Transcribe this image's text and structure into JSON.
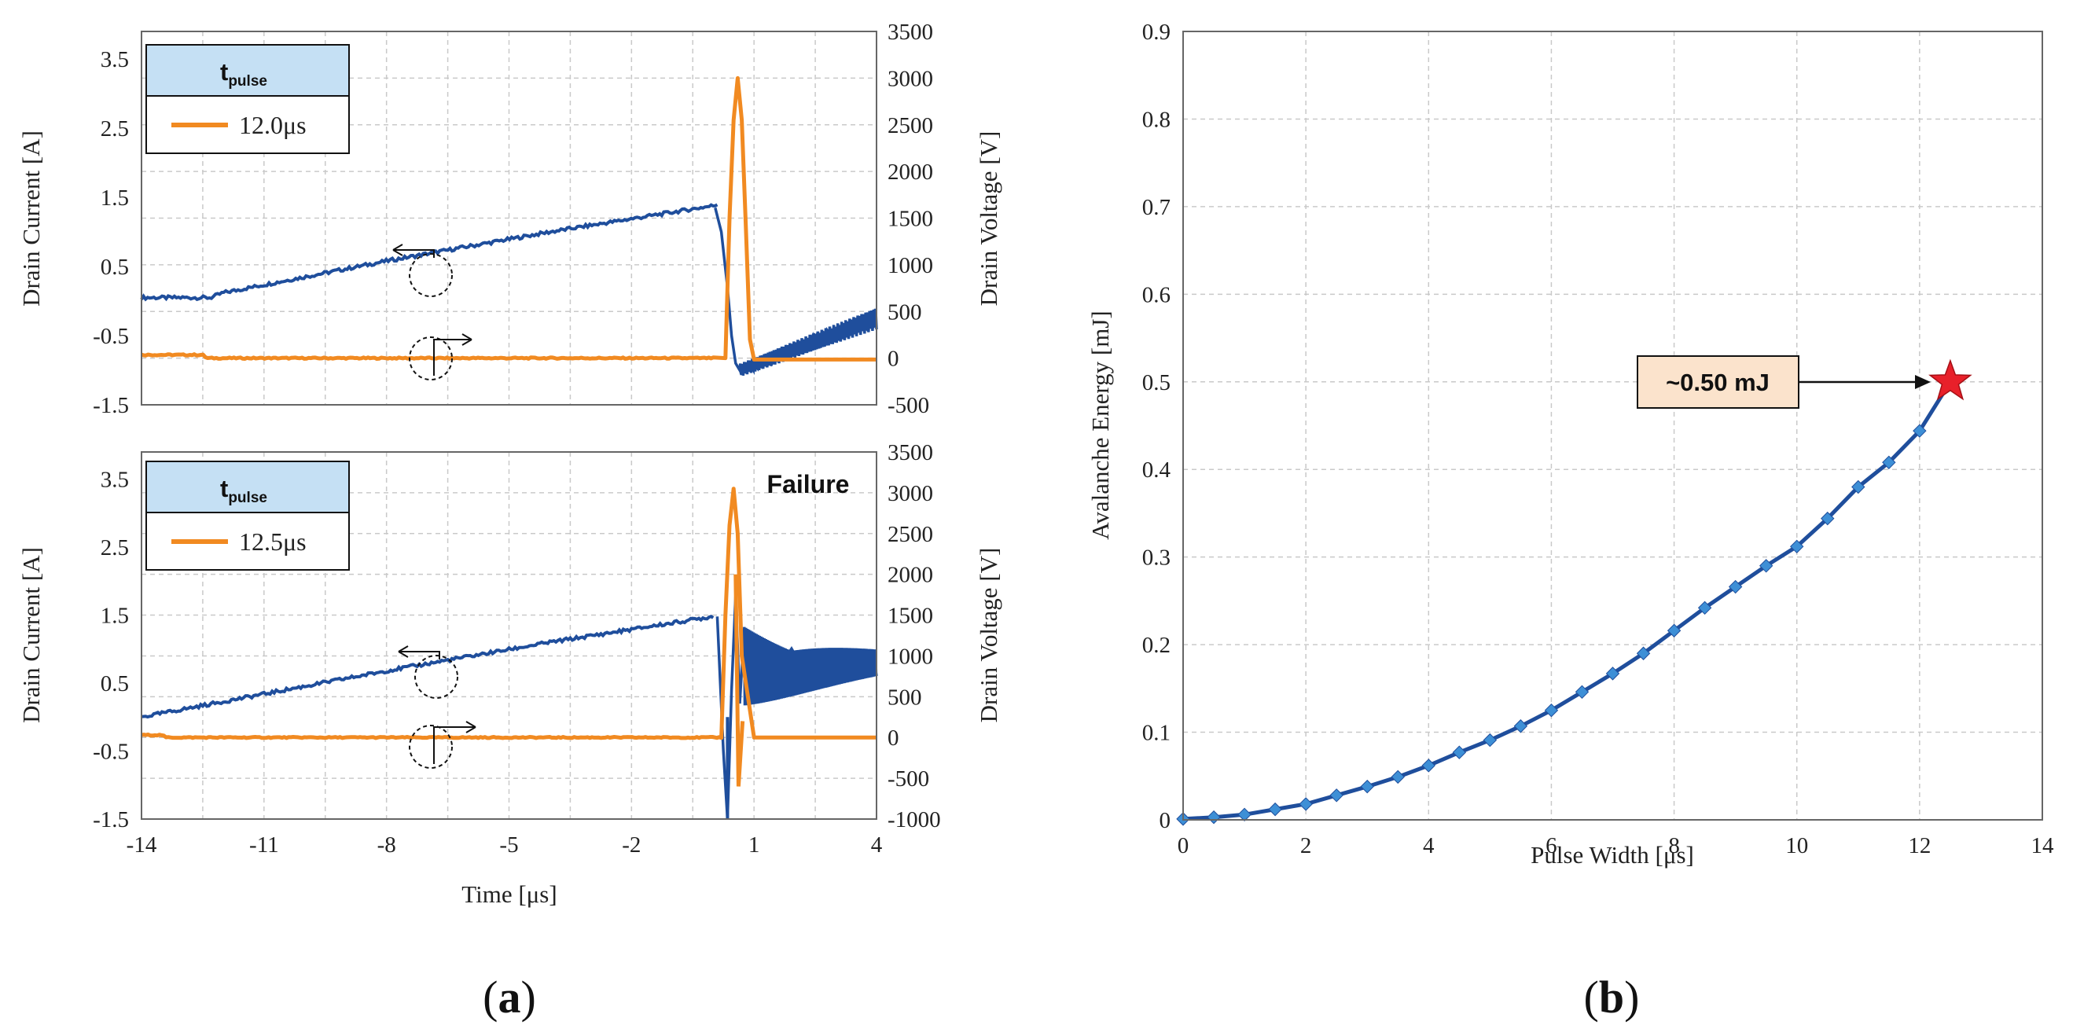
{
  "colors": {
    "current": "#1f4e9c",
    "voltage": "#f18a21",
    "energy_line": "#1f4e9c",
    "energy_marker": "#3d8fd6",
    "star": "#e8202a",
    "legend_head": "#c5e0f4",
    "anno_box": "#fbe3cc"
  },
  "panel_a": {
    "label_open": "(",
    "label_letter": "a",
    "label_close": ")",
    "xlabel": "Time [μs]",
    "xticks": [
      "-14",
      "-11",
      "-8",
      "-5",
      "-2",
      "1",
      "4"
    ],
    "top": {
      "ylabel_left": "Drain Current [A]",
      "ylabel_right": "Drain Voltage [V]",
      "yticks_left": [
        "-1.5",
        "-0.5",
        "0.5",
        "1.5",
        "2.5",
        "3.5"
      ],
      "yticks_right": [
        "-500",
        "0",
        "500",
        "1000",
        "1500",
        "2000",
        "2500",
        "3000",
        "3500"
      ],
      "legend_title": "t",
      "legend_title_sub": "pulse",
      "legend_entry": "12.0μs"
    },
    "bottom": {
      "ylabel_left": "Drain Current [A]",
      "ylabel_right": "Drain Voltage [V]",
      "yticks_left": [
        "-1.5",
        "-0.5",
        "0.5",
        "1.5",
        "2.5",
        "3.5"
      ],
      "yticks_right": [
        "-1000",
        "-500",
        "0",
        "500",
        "1000",
        "1500",
        "2000",
        "2500",
        "3000",
        "3500"
      ],
      "legend_title": "t",
      "legend_title_sub": "pulse",
      "legend_entry": "12.5μs",
      "annotation": "Failure"
    }
  },
  "panel_b": {
    "label_open": "(",
    "label_letter": "b",
    "label_close": ")",
    "annotation": "~0.50 mJ"
  },
  "chart_data": [
    {
      "type": "line",
      "title": "Panel (a) top: tpulse = 12.0 μs",
      "xlabel": "Time [μs]",
      "ylabel": "Drain Current [A]",
      "ylabel_right": "Drain Voltage [V]",
      "xlim": [
        -14,
        4
      ],
      "ylim": [
        -1.5,
        3.9
      ],
      "ylim_right": [
        -500,
        3500
      ],
      "series": [
        {
          "name": "Drain Current",
          "axis": "left",
          "x": [
            -14,
            -12.3,
            -12,
            -8,
            -4,
            0,
            0.1
          ],
          "y": [
            0.05,
            0.05,
            0.12,
            0.58,
            1.0,
            1.38,
            1.4
          ]
        },
        {
          "name": "Drain Voltage",
          "axis": "right",
          "x": [
            -14,
            -12.5,
            -12.4,
            -8,
            0,
            0.3,
            0.4,
            0.5,
            0.6,
            0.7,
            0.8,
            0.9,
            1.0,
            4
          ],
          "y": [
            35,
            35,
            0,
            0,
            0,
            0,
            1500,
            2550,
            3000,
            2550,
            1400,
            200,
            -15,
            -15
          ]
        }
      ]
    },
    {
      "type": "line",
      "title": "Panel (a) bottom: tpulse = 12.5 μs",
      "xlabel": "Time [μs]",
      "ylabel": "Drain Current [A]",
      "ylabel_right": "Drain Voltage [V]",
      "xlim": [
        -14,
        4
      ],
      "ylim": [
        -1.5,
        3.9
      ],
      "ylim_right": [
        -1000,
        3500
      ],
      "series": [
        {
          "name": "Drain Current",
          "axis": "left",
          "x": [
            -14,
            -8,
            -4,
            0
          ],
          "y": [
            0.0,
            0.68,
            1.1,
            1.48
          ]
        },
        {
          "name": "Drain Voltage",
          "axis": "right",
          "x": [
            -14,
            -13.5,
            -13.4,
            -1,
            0.2,
            0.3,
            0.4,
            0.5,
            0.6,
            0.7,
            1.0,
            4
          ],
          "y": [
            30,
            30,
            0,
            0,
            0,
            1500,
            2600,
            3050,
            2500,
            1000,
            0,
            0
          ]
        }
      ]
    },
    {
      "type": "line",
      "title": "Panel (b): Avalanche Energy vs Pulse Width",
      "xlabel": "Pulse Width [μs]",
      "ylabel": "Avalanche Energy [mJ]",
      "xlim": [
        0,
        14
      ],
      "ylim": [
        0,
        0.9
      ],
      "xticks": [
        0,
        2,
        4,
        6,
        8,
        10,
        12,
        14
      ],
      "yticks": [
        0,
        0.1,
        0.2,
        0.3,
        0.4,
        0.5,
        0.6,
        0.7,
        0.8,
        0.9
      ],
      "x": [
        0,
        0.5,
        1,
        1.5,
        2,
        2.5,
        3,
        3.5,
        4,
        4.5,
        5,
        5.5,
        6,
        6.5,
        7,
        7.5,
        8,
        8.5,
        9,
        9.5,
        10,
        10.5,
        11,
        11.5,
        12,
        12.5
      ],
      "y": [
        0.001,
        0.003,
        0.006,
        0.012,
        0.018,
        0.028,
        0.038,
        0.049,
        0.062,
        0.077,
        0.091,
        0.107,
        0.125,
        0.146,
        0.167,
        0.19,
        0.216,
        0.242,
        0.266,
        0.29,
        0.312,
        0.344,
        0.38,
        0.408,
        0.444,
        0.5
      ],
      "highlight": {
        "x": 12.5,
        "y": 0.5,
        "label": "~0.50 mJ"
      }
    }
  ]
}
